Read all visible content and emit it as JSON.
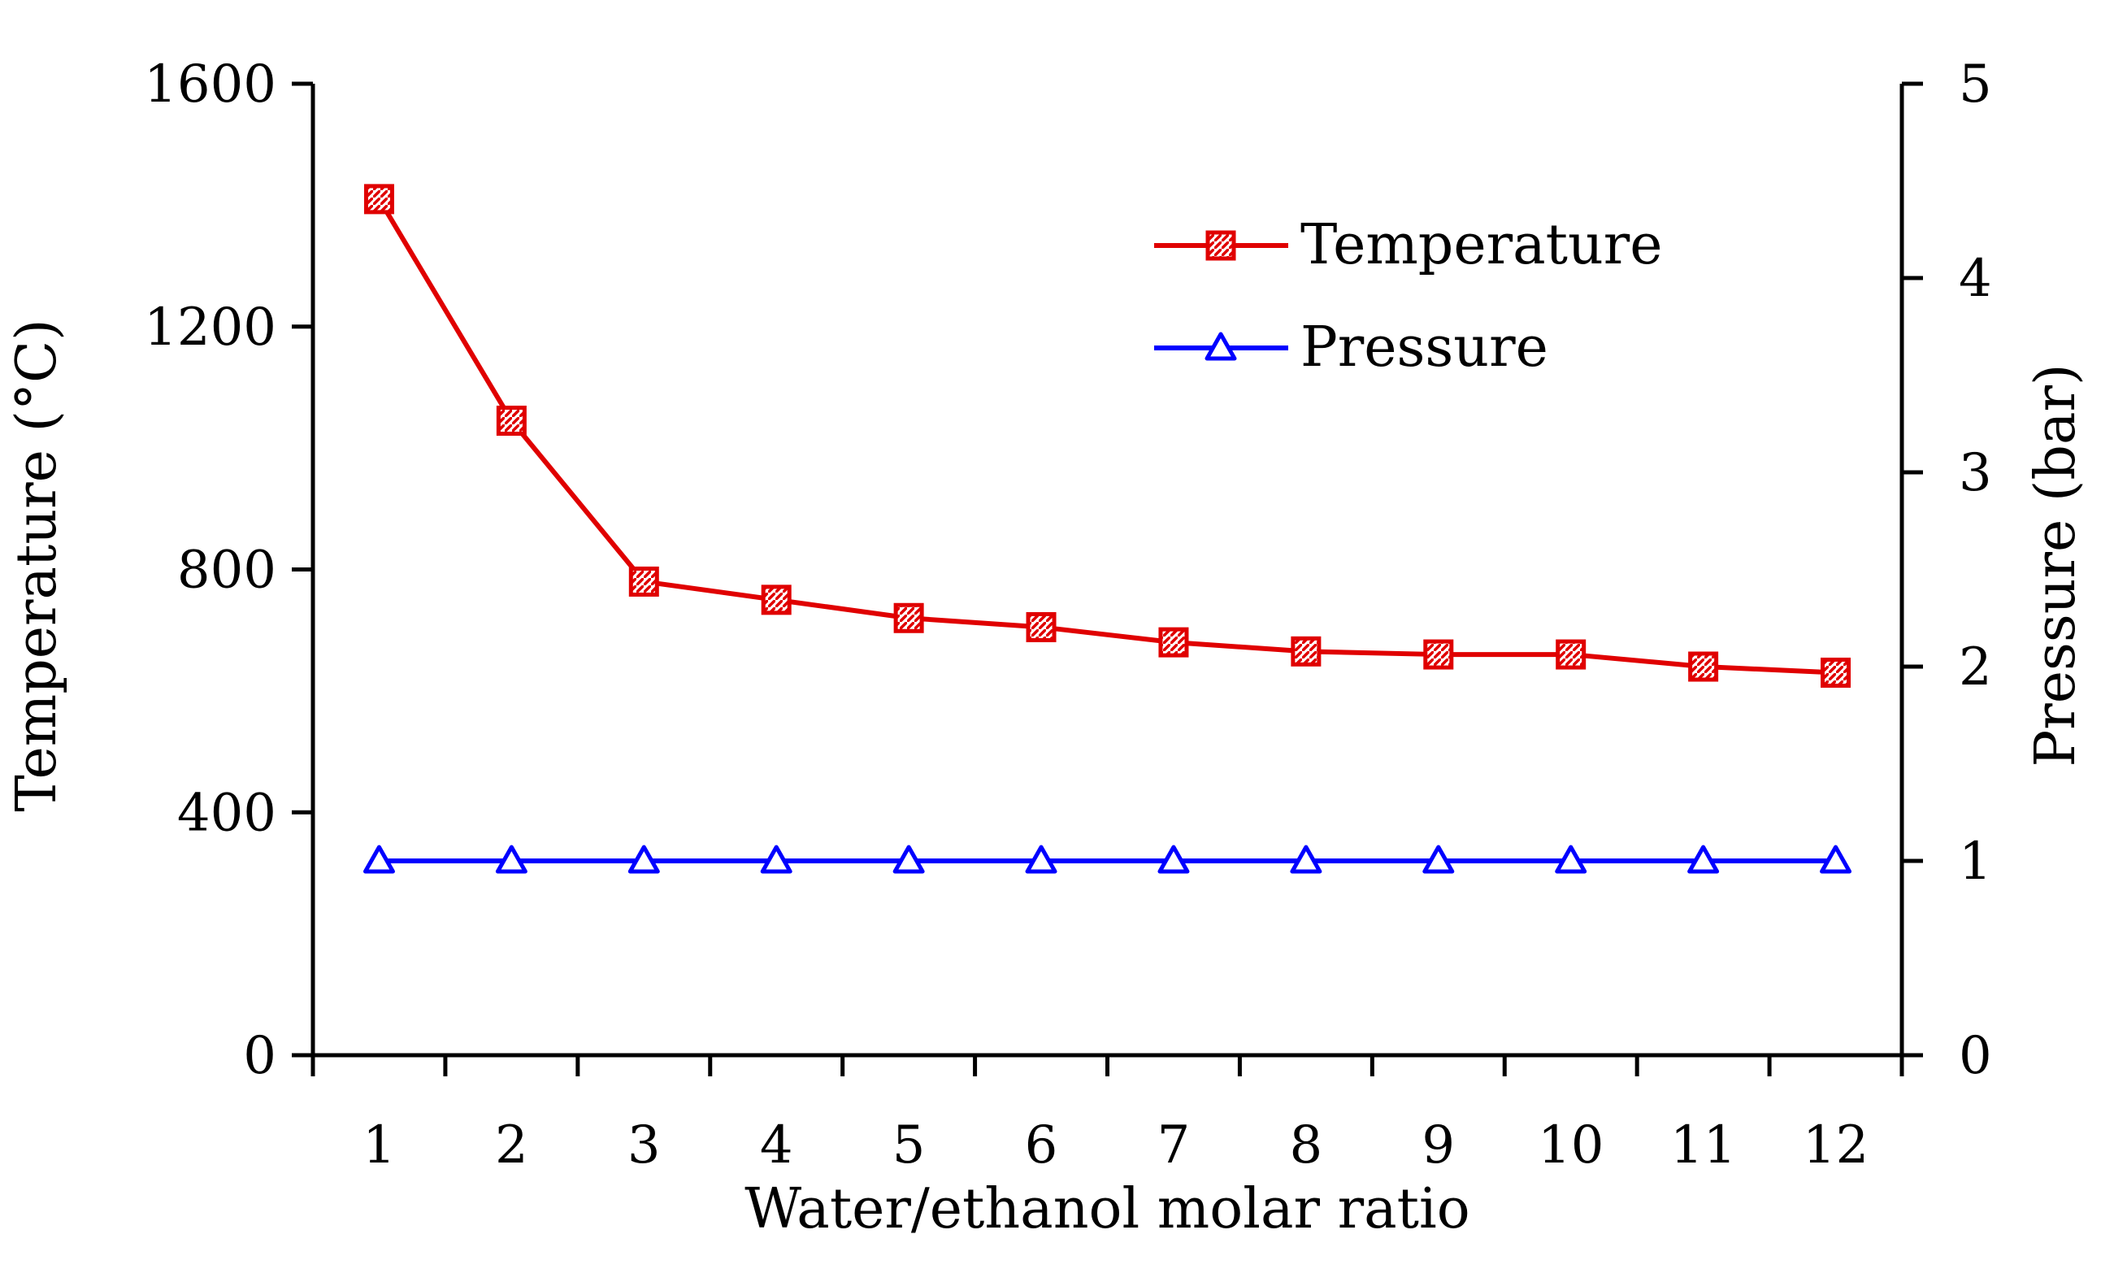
{
  "chart_data": {
    "type": "line",
    "title": "",
    "xlabel": "Water/ethanol molar ratio",
    "ylabel_left": "Temperature (°C)",
    "ylabel_right": "Pressure (bar)",
    "categories": [
      "1",
      "2",
      "3",
      "4",
      "5",
      "6",
      "7",
      "8",
      "9",
      "10",
      "11",
      "12"
    ],
    "ylim_left": [
      0,
      1600
    ],
    "ylim_right": [
      0,
      5
    ],
    "yticks_left": [
      "0",
      "400",
      "800",
      "1200",
      "1600"
    ],
    "yticks_right": [
      "0",
      "1",
      "2",
      "3",
      "4",
      "5"
    ],
    "series": [
      {
        "name": "Temperature",
        "axis": "left",
        "marker": "square",
        "color": "#e00000",
        "values": [
          1410,
          1045,
          780,
          750,
          720,
          705,
          680,
          665,
          660,
          660,
          640,
          630
        ]
      },
      {
        "name": "Pressure",
        "axis": "right",
        "marker": "triangle",
        "color": "#0000ff",
        "values": [
          1,
          1,
          1,
          1,
          1,
          1,
          1,
          1,
          1,
          1,
          1,
          1
        ]
      }
    ],
    "legend": {
      "position": "top-right",
      "entries": [
        "Temperature",
        "Pressure"
      ]
    }
  }
}
